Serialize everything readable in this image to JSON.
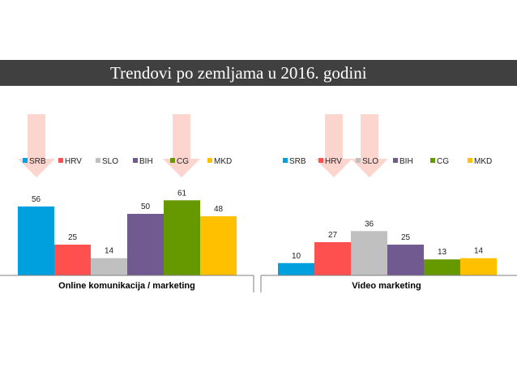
{
  "slide": {
    "title": "Trendovi po zemljama u 2016. godini"
  },
  "colors": {
    "SRB": "#00a0df",
    "HRV": "#ff5050",
    "SLO": "#c0c0c0",
    "BIH": "#705a90",
    "CG": "#669900",
    "MKD": "#ffc000",
    "highlight_arrow": "#fcd5cf"
  },
  "chart_data": [
    {
      "type": "bar",
      "xlabel": "Online komunikacija / marketing",
      "legend_position": "top",
      "series": [
        {
          "name": "SRB",
          "values": [
            56
          ]
        },
        {
          "name": "HRV",
          "values": [
            25
          ]
        },
        {
          "name": "SLO",
          "values": [
            14
          ]
        },
        {
          "name": "BIH",
          "values": [
            50
          ]
        },
        {
          "name": "CG",
          "values": [
            61
          ]
        },
        {
          "name": "MKD",
          "values": [
            48
          ]
        }
      ],
      "ylim": [
        0,
        70
      ],
      "grid": false,
      "highlighted_series": [
        "SRB",
        "CG"
      ]
    },
    {
      "type": "bar",
      "xlabel": "Video marketing",
      "legend_position": "top",
      "series": [
        {
          "name": "SRB",
          "values": [
            10
          ]
        },
        {
          "name": "HRV",
          "values": [
            27
          ]
        },
        {
          "name": "SLO",
          "values": [
            36
          ]
        },
        {
          "name": "BIH",
          "values": [
            25
          ]
        },
        {
          "name": "CG",
          "values": [
            13
          ]
        },
        {
          "name": "MKD",
          "values": [
            14
          ]
        }
      ],
      "ylim": [
        0,
        70
      ],
      "grid": false,
      "highlighted_series": [
        "HRV",
        "SLO"
      ]
    }
  ]
}
